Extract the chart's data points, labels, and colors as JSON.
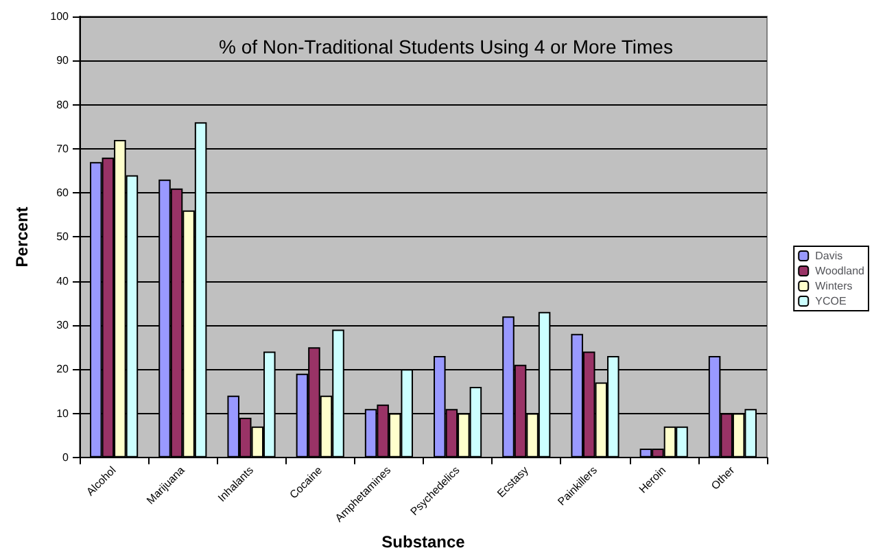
{
  "chart_data": {
    "type": "bar",
    "title": "% of Non-Traditional Students Using 4 or More Times",
    "xlabel": "Substance",
    "ylabel": "Percent",
    "categories": [
      "Alcohol",
      "Marijuana",
      "Inhalants",
      "Cocaine",
      "Amphetamines",
      "Psychedelics",
      "Ecstasy",
      "Painkillers",
      "Heroin",
      "Other"
    ],
    "series": [
      {
        "name": "Davis",
        "color": "#9999ff",
        "values": [
          67,
          63,
          14,
          19,
          11,
          23,
          32,
          28,
          2,
          23
        ]
      },
      {
        "name": "Woodland",
        "color": "#993366",
        "values": [
          68,
          61,
          9,
          25,
          12,
          11,
          21,
          24,
          2,
          10
        ]
      },
      {
        "name": "Winters",
        "color": "#ffffcc",
        "values": [
          72,
          56,
          7,
          14,
          10,
          10,
          10,
          17,
          7,
          10
        ]
      },
      {
        "name": "YCOE",
        "color": "#ccffff",
        "values": [
          64,
          76,
          24,
          29,
          20,
          16,
          33,
          23,
          7,
          11
        ]
      }
    ],
    "ylim": [
      0,
      100
    ],
    "yticks": [
      0,
      10,
      20,
      30,
      40,
      50,
      60,
      70,
      80,
      90,
      100
    ],
    "grid": "y",
    "legend": "right"
  }
}
